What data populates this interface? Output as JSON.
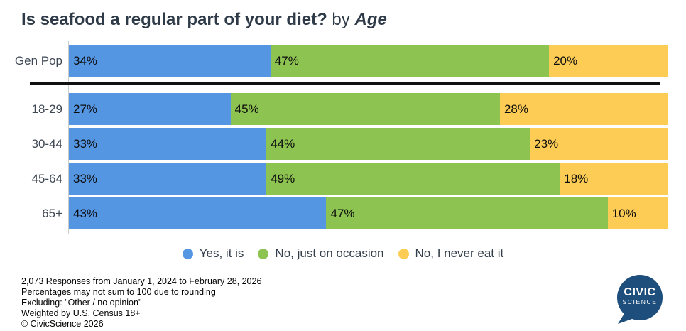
{
  "title": {
    "question": "Is seafood a regular part of your diet?",
    "connector": "by",
    "segment": "Age"
  },
  "chart_data": {
    "type": "bar",
    "variant": "horizontal-stacked",
    "stacked": true,
    "categories": [
      "Gen Pop",
      "18-29",
      "30-44",
      "45-64",
      "65+"
    ],
    "series": [
      {
        "name": "Yes, it is",
        "color": "#5596e3",
        "values": [
          34,
          27,
          33,
          33,
          43
        ]
      },
      {
        "name": "No, just on occasion",
        "color": "#8dc351",
        "values": [
          47,
          45,
          44,
          49,
          47
        ]
      },
      {
        "name": "No, I never eat it",
        "color": "#fdcc55",
        "values": [
          20,
          28,
          23,
          18,
          10
        ]
      }
    ],
    "value_suffix": "%",
    "xlim": [
      0,
      100
    ],
    "grid": false,
    "legend_position": "bottom",
    "note": "Gen Pop row separated from age rows by a black rule"
  },
  "footnotes": [
    "2,073 Responses from January 1, 2024 to February 28, 2026",
    "Percentages may not sum to 100 due to rounding",
    "Excluding: \"Other / no opinion\"",
    "Weighted by U.S. Census 18+",
    "© CivicScience 2026"
  ],
  "logo": {
    "line1": "CIVIC",
    "line2": "SCIENCE",
    "color": "#1d4e7c"
  },
  "colors": {
    "title_text": "#2e3a47",
    "row_label_text": "#3e4854",
    "bar_label_text": "#0d0d0d",
    "separator": "#111111",
    "axis_line": "#cccccc",
    "background": "#ffffff"
  }
}
